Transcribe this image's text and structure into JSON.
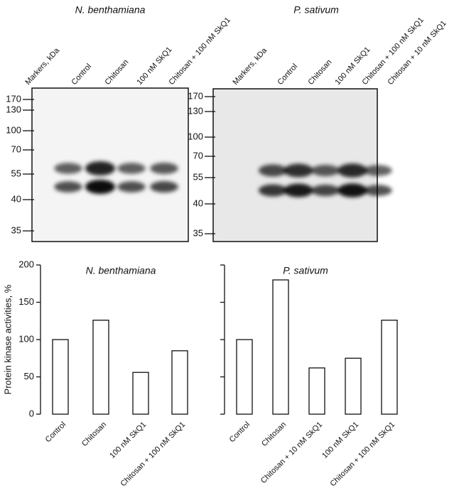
{
  "blots": [
    {
      "title": "N. benthamiana",
      "lanes": [
        "Markers, kDa",
        "Control",
        "Chitosan",
        "100 nM SkQ1",
        "Chitosan + 100 nM SkQ1"
      ],
      "markers": [
        "170",
        "130",
        "100",
        "70",
        "55",
        "40",
        "35"
      ]
    },
    {
      "title": "P. sativum",
      "lanes": [
        "Markers, kDa",
        "Control",
        "Chitosan",
        "100 nM SkQ1",
        "Chitosan + 100 nM SkQ1",
        "Chitosan + 10 nM SkQ1"
      ],
      "markers": [
        "170",
        "130",
        "100",
        "70",
        "55",
        "40",
        "35"
      ]
    }
  ],
  "chart_data": [
    {
      "type": "bar",
      "title": "N. benthamiana",
      "y_label": "Protein kinase activities, %",
      "categories": [
        "Control",
        "Chitosan",
        "100 nM SkQ1",
        "Chitosan + 100 nM SkQ1"
      ],
      "values": [
        100,
        126,
        56,
        85
      ],
      "color": "#ffffff",
      "ylim": [
        0,
        200
      ],
      "yticks": [
        0,
        50,
        100,
        150,
        200
      ]
    },
    {
      "type": "bar",
      "title": "P. sativum",
      "categories": [
        "Control",
        "Chitosan",
        "Chitosan + 10 nM SkQ1",
        "100 nM SkQ1",
        "Chitosan + 100 nM SkQ1"
      ],
      "values": [
        100,
        180,
        62,
        75,
        126
      ],
      "color": "#ffffff",
      "ylim": [
        0,
        200
      ],
      "yticks": [
        0,
        50,
        100,
        150,
        200
      ]
    }
  ]
}
